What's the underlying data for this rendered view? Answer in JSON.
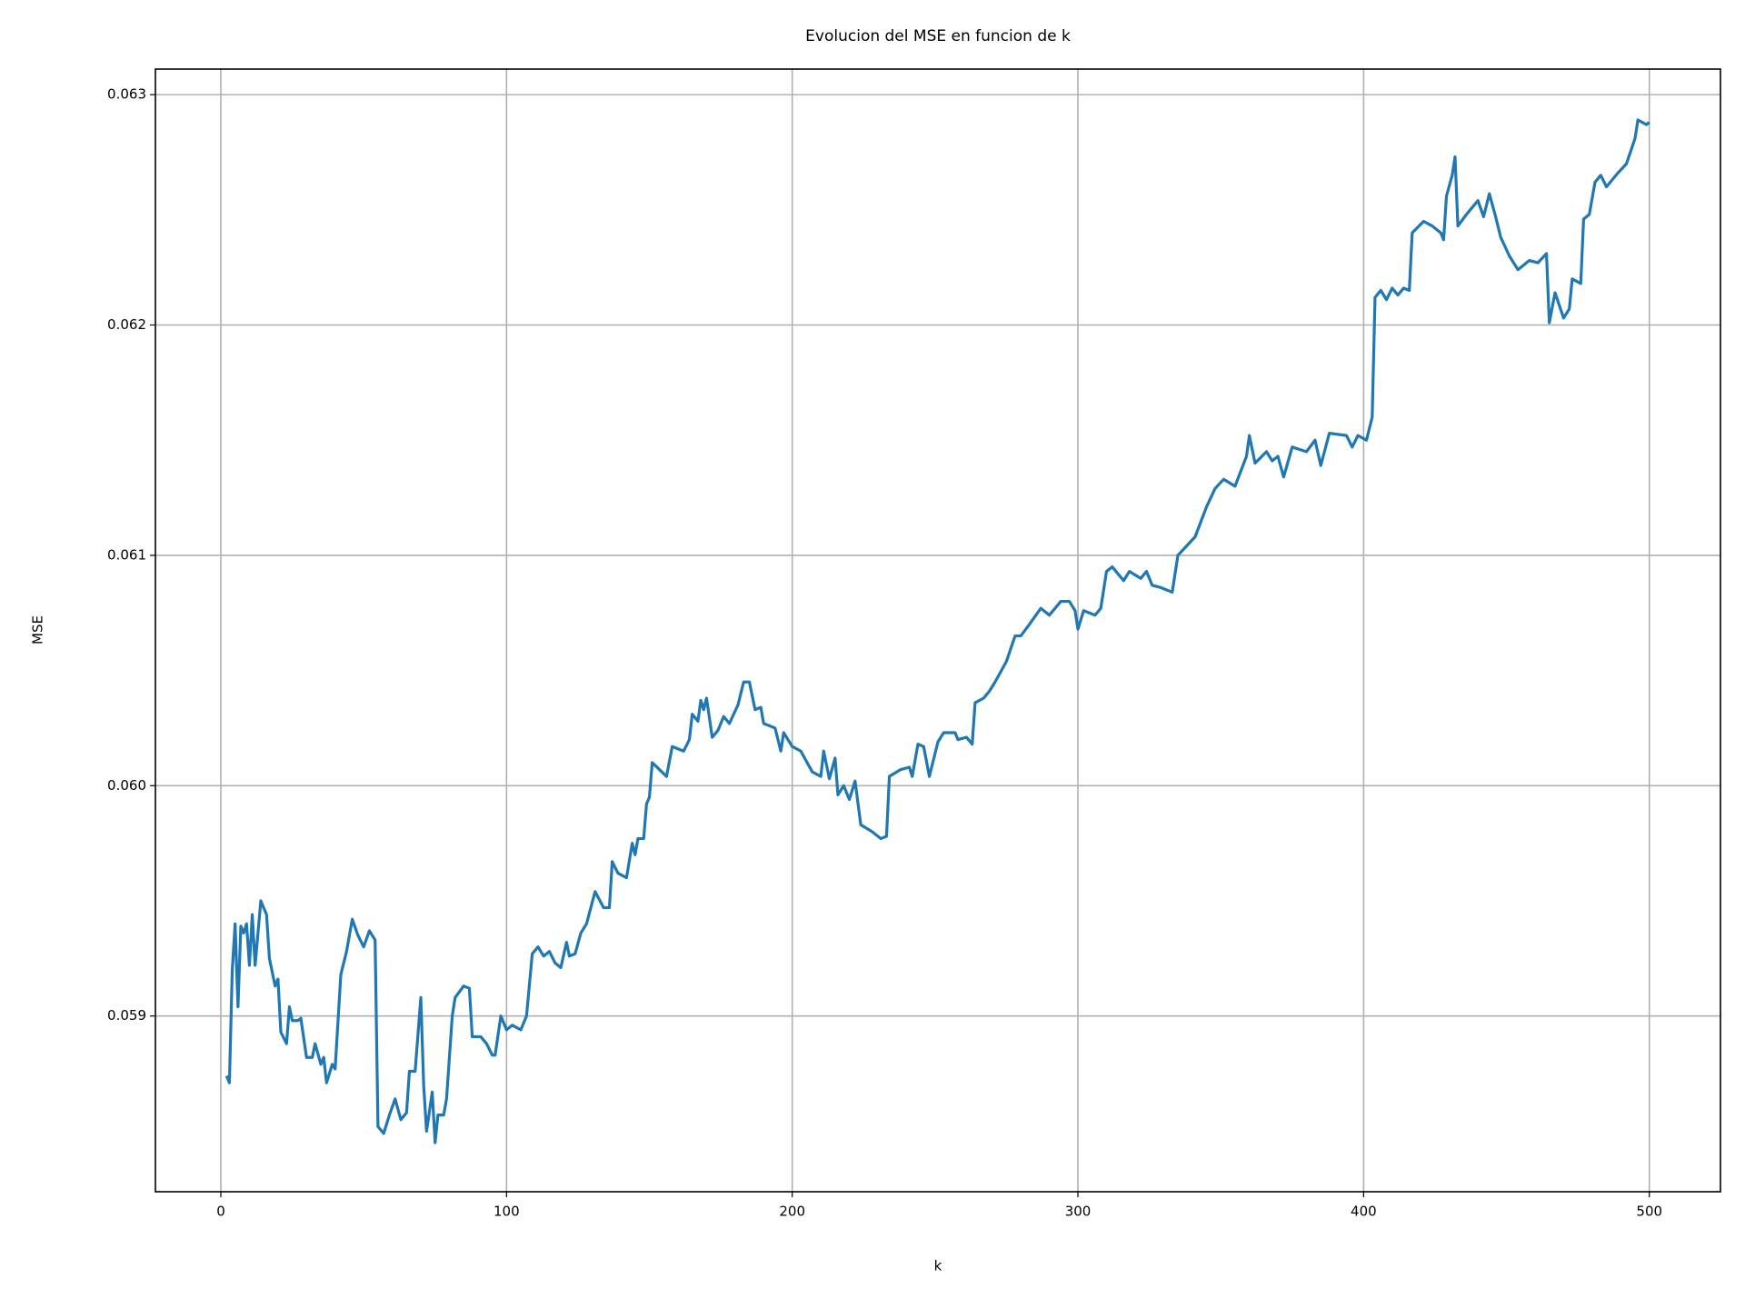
{
  "chart_data": {
    "type": "line",
    "title": "Evolucion del MSE en funcion de k",
    "x_label": "k",
    "y_label": "MSE",
    "xlim": [
      -22.9,
      524.9
    ],
    "ylim": [
      0.058237,
      0.063111
    ],
    "xticks": [
      0,
      100,
      200,
      300,
      400,
      500
    ],
    "yticks": [
      0.059,
      {
        "value": 0.06,
        "label": "0.060"
      },
      0.061,
      0.062,
      0.063
    ],
    "grid": true,
    "series": [
      {
        "color": "#1f77b4",
        "x": [
          2,
          3,
          4,
          5,
          6,
          7,
          8,
          9,
          10,
          11,
          12,
          14,
          16,
          17,
          19,
          20,
          21,
          23,
          24,
          25,
          27,
          28,
          30,
          32,
          33,
          35,
          36,
          37,
          39,
          40,
          42,
          44,
          46,
          48,
          50,
          52,
          54,
          55,
          57,
          59,
          61,
          63,
          65,
          66,
          68,
          70,
          71,
          72,
          74,
          75,
          76,
          78,
          79,
          81,
          82,
          85,
          87,
          88,
          91,
          93,
          95,
          96,
          98,
          100,
          102,
          105,
          107,
          109,
          111,
          113,
          115,
          117,
          119,
          121,
          122,
          124,
          126,
          128,
          131,
          134,
          136,
          137,
          139,
          142,
          144,
          145,
          146,
          148,
          149,
          150,
          151,
          156,
          158,
          162,
          164,
          165,
          167,
          168,
          169,
          170,
          172,
          174,
          176,
          178,
          181,
          183,
          185,
          187,
          189,
          190,
          194,
          196,
          197,
          200,
          203,
          207,
          210,
          211,
          213,
          215,
          216,
          218,
          220,
          222,
          224,
          228,
          231,
          233,
          234,
          238,
          241,
          242,
          244,
          246,
          248,
          251,
          253,
          257,
          258,
          261,
          263,
          264,
          267,
          269,
          271,
          275,
          278,
          280,
          283,
          287,
          290,
          294,
          297,
          299,
          300,
          302,
          306,
          308,
          310,
          312,
          316,
          318,
          322,
          324,
          326,
          329,
          333,
          335,
          338,
          341,
          345,
          348,
          351,
          355,
          359,
          360,
          362,
          366,
          368,
          370,
          372,
          375,
          380,
          383,
          385,
          388,
          394,
          396,
          398,
          401,
          403,
          404,
          406,
          408,
          410,
          412,
          414,
          416,
          417,
          421,
          424,
          427,
          428,
          429,
          431,
          432,
          433,
          436,
          440,
          442,
          444,
          446,
          448,
          451,
          454,
          458,
          461,
          464,
          465,
          467,
          470,
          472,
          473,
          476,
          477,
          479,
          481,
          483,
          485,
          489,
          492,
          495,
          496,
          499,
          500
        ],
        "values": [
          0.05874,
          0.05871,
          0.0592,
          0.0594,
          0.05904,
          0.05939,
          0.05936,
          0.0594,
          0.05922,
          0.05944,
          0.05922,
          0.0595,
          0.05944,
          0.05925,
          0.05913,
          0.05916,
          0.05893,
          0.05888,
          0.05904,
          0.05898,
          0.05898,
          0.05899,
          0.05882,
          0.05882,
          0.05888,
          0.05879,
          0.05882,
          0.05871,
          0.05879,
          0.05877,
          0.05918,
          0.05928,
          0.05942,
          0.05935,
          0.0593,
          0.05937,
          0.05933,
          0.05852,
          0.05849,
          0.05857,
          0.05864,
          0.05855,
          0.05858,
          0.05876,
          0.05876,
          0.05908,
          0.0587,
          0.0585,
          0.05867,
          0.05845,
          0.05857,
          0.05857,
          0.05864,
          0.059,
          0.05908,
          0.05913,
          0.05912,
          0.05891,
          0.05891,
          0.05888,
          0.05883,
          0.05883,
          0.059,
          0.05894,
          0.05896,
          0.05894,
          0.059,
          0.05927,
          0.0593,
          0.05926,
          0.05928,
          0.05923,
          0.05921,
          0.05932,
          0.05926,
          0.05927,
          0.05936,
          0.0594,
          0.05954,
          0.05947,
          0.05947,
          0.05967,
          0.05962,
          0.0596,
          0.05975,
          0.0597,
          0.05977,
          0.05977,
          0.05992,
          0.05995,
          0.0601,
          0.06004,
          0.06017,
          0.06015,
          0.0602,
          0.06031,
          0.06028,
          0.06037,
          0.06033,
          0.06038,
          0.06021,
          0.06024,
          0.0603,
          0.06027,
          0.06035,
          0.06045,
          0.06045,
          0.06033,
          0.06034,
          0.06027,
          0.06025,
          0.06015,
          0.06023,
          0.06017,
          0.06015,
          0.06006,
          0.06004,
          0.06015,
          0.06003,
          0.06012,
          0.05996,
          0.06,
          0.05994,
          0.06002,
          0.05983,
          0.0598,
          0.05977,
          0.05978,
          0.06004,
          0.06007,
          0.06008,
          0.06004,
          0.06018,
          0.06017,
          0.06004,
          0.06019,
          0.06023,
          0.06023,
          0.0602,
          0.06021,
          0.06018,
          0.06036,
          0.06038,
          0.06041,
          0.06045,
          0.06054,
          0.06065,
          0.06065,
          0.0607,
          0.06077,
          0.06074,
          0.0608,
          0.0608,
          0.06076,
          0.06068,
          0.06076,
          0.06074,
          0.06077,
          0.06093,
          0.06095,
          0.06089,
          0.06093,
          0.0609,
          0.06093,
          0.06087,
          0.06086,
          0.06084,
          0.061,
          0.06104,
          0.06108,
          0.06121,
          0.06129,
          0.06133,
          0.0613,
          0.06143,
          0.06152,
          0.0614,
          0.06145,
          0.06141,
          0.06143,
          0.06134,
          0.06147,
          0.06145,
          0.0615,
          0.06139,
          0.06153,
          0.06152,
          0.06147,
          0.06152,
          0.0615,
          0.0616,
          0.06212,
          0.06215,
          0.06211,
          0.06216,
          0.06213,
          0.06216,
          0.06215,
          0.0624,
          0.06245,
          0.06243,
          0.0624,
          0.06237,
          0.06256,
          0.06265,
          0.06273,
          0.06243,
          0.06248,
          0.06254,
          0.06247,
          0.06257,
          0.06248,
          0.06238,
          0.0623,
          0.06224,
          0.06228,
          0.06227,
          0.06231,
          0.06201,
          0.06214,
          0.06203,
          0.06207,
          0.0622,
          0.06218,
          0.06246,
          0.06248,
          0.06262,
          0.06265,
          0.0626,
          0.06266,
          0.0627,
          0.06281,
          0.06289,
          0.06287,
          0.06288
        ]
      }
    ]
  }
}
